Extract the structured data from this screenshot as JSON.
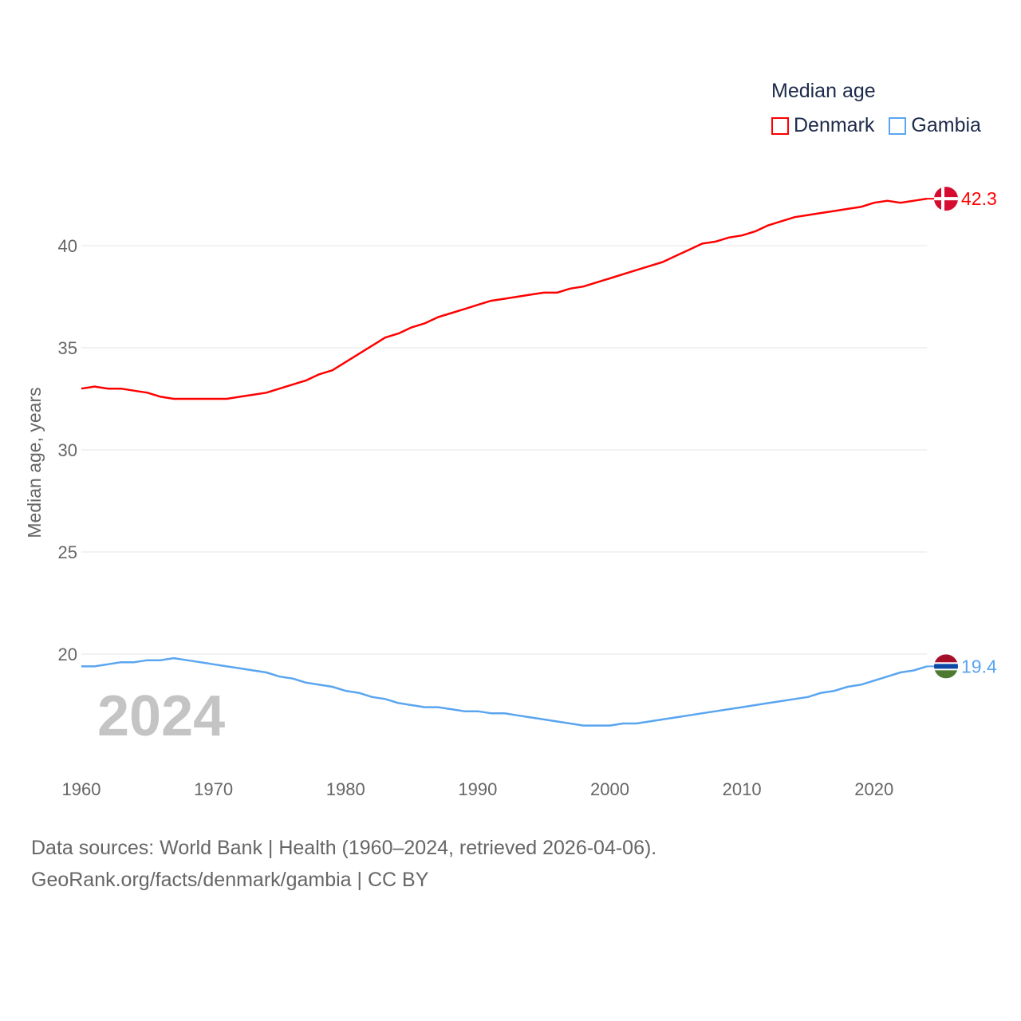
{
  "chart_data": {
    "type": "line",
    "title": "",
    "legend_title": "Median age",
    "legend_position": "top-right",
    "ylabel": "Median age, years",
    "xlabel": "",
    "ylim": [
      15,
      43
    ],
    "xlim": [
      1960,
      2024
    ],
    "x_ticks": [
      "1960",
      "1970",
      "1980",
      "1990",
      "2000",
      "2010",
      "2020"
    ],
    "y_ticks": [
      "20",
      "25",
      "30",
      "35",
      "40"
    ],
    "grid": true,
    "year_watermark": "2024",
    "x": [
      1960,
      1961,
      1962,
      1963,
      1964,
      1965,
      1966,
      1967,
      1968,
      1969,
      1970,
      1971,
      1972,
      1973,
      1974,
      1975,
      1976,
      1977,
      1978,
      1979,
      1980,
      1981,
      1982,
      1983,
      1984,
      1985,
      1986,
      1987,
      1988,
      1989,
      1990,
      1991,
      1992,
      1993,
      1994,
      1995,
      1996,
      1997,
      1998,
      1999,
      2000,
      2001,
      2002,
      2003,
      2004,
      2005,
      2006,
      2007,
      2008,
      2009,
      2010,
      2011,
      2012,
      2013,
      2014,
      2015,
      2016,
      2017,
      2018,
      2019,
      2020,
      2021,
      2022,
      2023,
      2024
    ],
    "series": [
      {
        "name": "Denmark",
        "color": "#ff0000",
        "end_label": "42.3",
        "values": [
          33.0,
          33.1,
          33.0,
          33.0,
          32.9,
          32.8,
          32.6,
          32.5,
          32.5,
          32.5,
          32.5,
          32.5,
          32.6,
          32.7,
          32.8,
          33.0,
          33.2,
          33.4,
          33.7,
          33.9,
          34.3,
          34.7,
          35.1,
          35.5,
          35.7,
          36.0,
          36.2,
          36.5,
          36.7,
          36.9,
          37.1,
          37.3,
          37.4,
          37.5,
          37.6,
          37.7,
          37.7,
          37.9,
          38.0,
          38.2,
          38.4,
          38.6,
          38.8,
          39.0,
          39.2,
          39.5,
          39.8,
          40.1,
          40.2,
          40.4,
          40.5,
          40.7,
          41.0,
          41.2,
          41.4,
          41.5,
          41.6,
          41.7,
          41.8,
          41.9,
          42.1,
          42.2,
          42.1,
          42.2,
          42.3
        ]
      },
      {
        "name": "Gambia",
        "color": "#5aa5f0",
        "end_label": "19.4",
        "values": [
          19.4,
          19.4,
          19.5,
          19.6,
          19.6,
          19.7,
          19.7,
          19.8,
          19.7,
          19.6,
          19.5,
          19.4,
          19.3,
          19.2,
          19.1,
          18.9,
          18.8,
          18.6,
          18.5,
          18.4,
          18.2,
          18.1,
          17.9,
          17.8,
          17.6,
          17.5,
          17.4,
          17.4,
          17.3,
          17.2,
          17.2,
          17.1,
          17.1,
          17.0,
          16.9,
          16.8,
          16.7,
          16.6,
          16.5,
          16.5,
          16.5,
          16.6,
          16.6,
          16.7,
          16.8,
          16.9,
          17.0,
          17.1,
          17.2,
          17.3,
          17.4,
          17.5,
          17.6,
          17.7,
          17.8,
          17.9,
          18.1,
          18.2,
          18.4,
          18.5,
          18.7,
          18.9,
          19.1,
          19.2,
          19.4
        ]
      }
    ]
  },
  "footer": {
    "line1": "Data sources: World Bank | Health (1960–2024, retrieved 2026-04-06).",
    "line2": "GeoRank.org/facts/denmark/gambia | CC BY"
  }
}
